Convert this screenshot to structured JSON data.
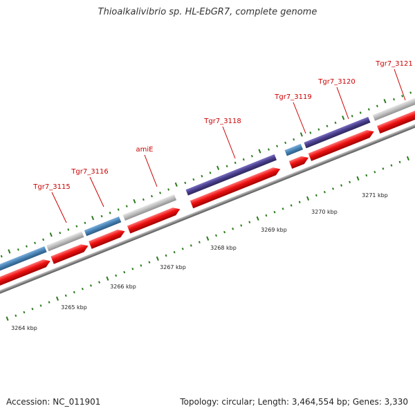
{
  "title": "Thioalkalivibrio sp. HL-EbGR7, complete genome",
  "footer": {
    "accession": "Accession: NC_011901",
    "summary": "Topology: circular; Length: 3,464,554 bp; Genes: 3,330"
  },
  "colors": {
    "cds": "#ee1111",
    "gene_label": "#cc0000",
    "tick": "#2a7a1a",
    "backbone": "#8a8a8a",
    "blue": "#4682b4",
    "grey": "#bdbdbd",
    "purple": "#483d8b"
  },
  "genes": [
    {
      "name": "",
      "color": "blue"
    },
    {
      "name": "Tgr7_3115",
      "color": "grey"
    },
    {
      "name": "Tgr7_3116",
      "color": "blue"
    },
    {
      "name": "amiE",
      "color": "grey"
    },
    {
      "name": "Tgr7_3118",
      "color": "purple"
    },
    {
      "name": "Tgr7_3119",
      "color": "blue"
    },
    {
      "name": "Tgr7_3120",
      "color": "purple"
    },
    {
      "name": "Tgr7_3121",
      "color": "grey"
    }
  ],
  "scale": [
    {
      "label": "3264 kbp"
    },
    {
      "label": "3265 kbp"
    },
    {
      "label": "3266 kbp"
    },
    {
      "label": "3267 kbp"
    },
    {
      "label": "3268 kbp"
    },
    {
      "label": "3269 kbp"
    },
    {
      "label": "3270 kbp"
    },
    {
      "label": "3271 kbp"
    }
  ]
}
